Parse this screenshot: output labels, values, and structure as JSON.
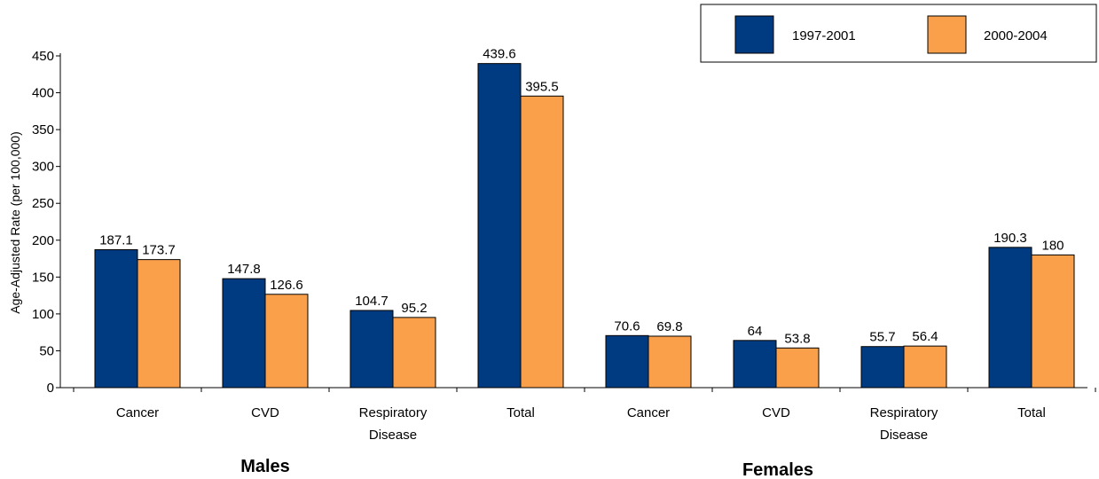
{
  "chart_data": {
    "type": "bar",
    "ylabel": "Age-Adjusted Rate (per 100,000)",
    "ylim": [
      0,
      450
    ],
    "yticks": [
      0,
      50,
      100,
      150,
      200,
      250,
      300,
      350,
      400,
      450
    ],
    "grid": false,
    "legend_position": "top-right",
    "groups": [
      {
        "label": "Males",
        "categories": [
          "Cancer",
          "CVD",
          "Respiratory Disease",
          "Total"
        ]
      },
      {
        "label": "Females",
        "categories": [
          "Cancer",
          "CVD",
          "Respiratory Disease",
          "Total"
        ]
      }
    ],
    "categories": [
      [
        "Cancer"
      ],
      [
        "CVD"
      ],
      [
        "Respiratory",
        "Disease"
      ],
      [
        "Total"
      ],
      [
        "Cancer"
      ],
      [
        "CVD"
      ],
      [
        "Respiratory",
        "Disease"
      ],
      [
        "Total"
      ]
    ],
    "series": [
      {
        "name": "1997-2001",
        "color": "#003A80",
        "values": [
          187.1,
          147.8,
          104.7,
          439.6,
          70.6,
          64,
          55.7,
          190.3
        ]
      },
      {
        "name": "2000-2004",
        "color": "#FBA04A",
        "values": [
          173.7,
          126.6,
          95.2,
          395.5,
          69.8,
          53.8,
          56.4,
          180
        ]
      }
    ]
  }
}
